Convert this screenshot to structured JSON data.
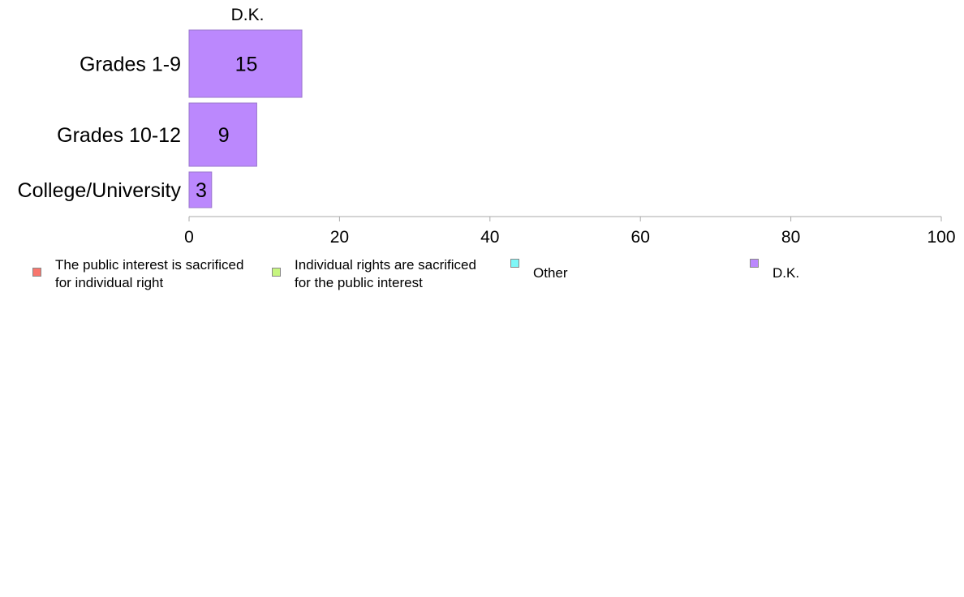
{
  "chart_data": {
    "type": "bar",
    "orientation": "horizontal",
    "stacked": true,
    "categories": [
      "Grades 1-9",
      "Grades 10-12",
      "College/University"
    ],
    "series": [
      {
        "name": "The public interest is sacrificed\nfor individual right",
        "color": "#f8766d",
        "values": [
          0,
          0,
          0
        ]
      },
      {
        "name": "Individual rights are sacrificed\nfor the public interest",
        "color": "#c6f57f",
        "values": [
          0,
          0,
          0
        ]
      },
      {
        "name": "Other",
        "color": "#7ff7f7",
        "values": [
          0,
          0,
          0
        ]
      },
      {
        "name": "D.K.",
        "color": "#bb88fd",
        "values": [
          15,
          9,
          3
        ]
      }
    ],
    "shown_series_header": "D.K.",
    "data_labels": [
      "15",
      "9",
      "3"
    ],
    "xlim": [
      0,
      100
    ],
    "x_ticks": [
      0,
      20,
      40,
      60,
      80,
      100
    ],
    "x_tick_labels": [
      "0",
      "20",
      "40",
      "60",
      "80",
      "100"
    ],
    "grid": false,
    "legend_position": "bottom"
  }
}
